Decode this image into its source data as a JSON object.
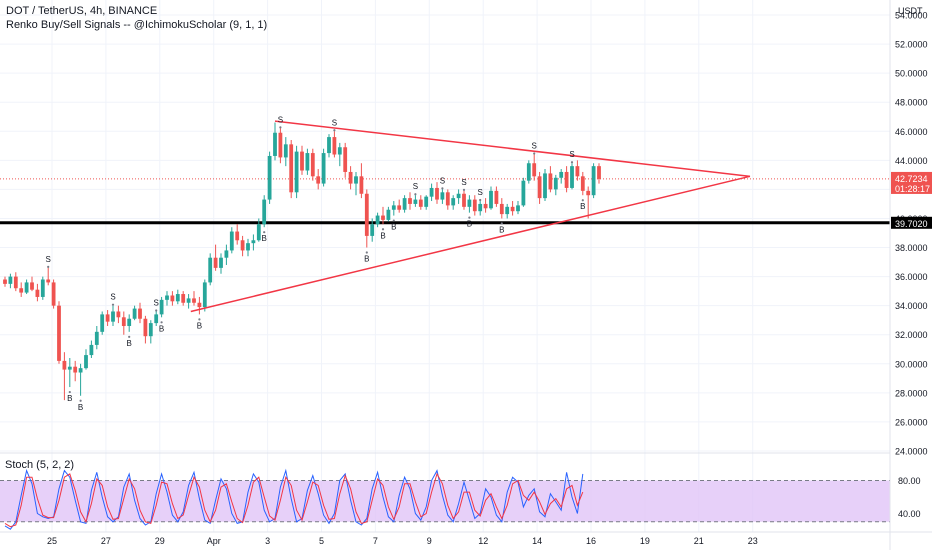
{
  "header": {
    "symbol_line": "DOT / TetherUS, 4h, BINANCE",
    "indicator_line": "Renko Buy/Sell Signals -- @IchimokuScholar (9, 1, 1)",
    "oscillator_line": "Stoch (5, 2, 2)"
  },
  "currency": "USDT",
  "chart_data": [
    {
      "type": "candlestick",
      "title": "DOT / TetherUS, 4h, BINANCE",
      "ylim": [
        24,
        54
      ],
      "y_ticks": [
        "54.0000",
        "52.0000",
        "50.0000",
        "48.0000",
        "46.0000",
        "44.0000",
        "42.0000",
        "40.0000",
        "38.0000",
        "36.0000",
        "34.0000",
        "32.0000",
        "30.0000",
        "28.0000",
        "26.0000",
        "24.0000"
      ],
      "x_ticks": [
        "25",
        "27",
        "29",
        "Apr",
        "3",
        "5",
        "7",
        "9",
        "12",
        "14",
        "16",
        "19",
        "21",
        "23"
      ],
      "last_price": "42.7234",
      "countdown": "01:28:17",
      "support_level": "39.7020",
      "support_value": 39.702,
      "up_color": "#26a69a",
      "down_color": "#ef5350",
      "trendline_color": "#f23645",
      "candles": [
        [
          35.8,
          36.0,
          35.3,
          35.5
        ],
        [
          35.5,
          36.2,
          35.2,
          36.0
        ],
        [
          36.0,
          36.3,
          35.0,
          35.2
        ],
        [
          35.2,
          35.6,
          34.6,
          34.9
        ],
        [
          34.9,
          35.8,
          34.8,
          35.6
        ],
        [
          35.6,
          36.0,
          35.0,
          35.1
        ],
        [
          35.1,
          35.5,
          34.3,
          34.6
        ],
        [
          34.6,
          36.0,
          34.4,
          35.8
        ],
        [
          35.8,
          36.6,
          35.4,
          35.6
        ],
        [
          35.6,
          35.8,
          33.8,
          34.0
        ],
        [
          34.0,
          34.3,
          30.0,
          30.2
        ],
        [
          30.2,
          30.8,
          27.5,
          29.6
        ],
        [
          29.6,
          30.4,
          28.4,
          29.8
        ],
        [
          29.8,
          30.2,
          28.8,
          29.4
        ],
        [
          29.4,
          30.0,
          27.8,
          29.7
        ],
        [
          29.7,
          31.0,
          29.6,
          30.6
        ],
        [
          30.6,
          31.6,
          30.4,
          31.3
        ],
        [
          31.3,
          32.6,
          31.0,
          32.2
        ],
        [
          32.2,
          33.6,
          32.0,
          33.4
        ],
        [
          33.4,
          33.7,
          32.6,
          32.9
        ],
        [
          32.9,
          34.0,
          32.6,
          33.6
        ],
        [
          33.6,
          34.0,
          32.8,
          33.2
        ],
        [
          33.2,
          33.6,
          32.0,
          32.6
        ],
        [
          32.6,
          33.4,
          32.2,
          33.1
        ],
        [
          33.1,
          34.0,
          33.0,
          33.8
        ],
        [
          33.8,
          34.2,
          32.8,
          33.1
        ],
        [
          33.1,
          33.3,
          31.4,
          31.9
        ],
        [
          31.9,
          33.0,
          31.4,
          32.8
        ],
        [
          32.8,
          33.6,
          32.6,
          33.4
        ],
        [
          33.4,
          34.6,
          33.2,
          34.4
        ],
        [
          34.4,
          35.0,
          34.0,
          34.7
        ],
        [
          34.7,
          35.0,
          34.0,
          34.3
        ],
        [
          34.3,
          35.1,
          34.1,
          34.8
        ],
        [
          34.8,
          35.0,
          34.0,
          34.2
        ],
        [
          34.2,
          34.8,
          33.8,
          34.5
        ],
        [
          34.5,
          35.0,
          34.0,
          34.2
        ],
        [
          34.2,
          34.6,
          33.4,
          33.9
        ],
        [
          33.9,
          35.8,
          33.6,
          35.6
        ],
        [
          35.6,
          37.6,
          35.4,
          37.3
        ],
        [
          37.3,
          38.2,
          36.4,
          36.6
        ],
        [
          36.6,
          37.6,
          36.2,
          37.3
        ],
        [
          37.3,
          38.2,
          36.8,
          37.8
        ],
        [
          37.8,
          39.4,
          37.6,
          39.1
        ],
        [
          39.1,
          39.6,
          38.2,
          38.5
        ],
        [
          38.5,
          38.8,
          37.4,
          37.8
        ],
        [
          37.8,
          38.6,
          37.4,
          38.3
        ],
        [
          38.3,
          38.9,
          37.8,
          38.5
        ],
        [
          38.5,
          40.0,
          38.4,
          39.6
        ],
        [
          39.6,
          41.6,
          39.4,
          41.3
        ],
        [
          41.3,
          44.6,
          41.0,
          44.3
        ],
        [
          44.3,
          46.6,
          44.0,
          45.9
        ],
        [
          45.9,
          46.2,
          43.8,
          44.2
        ],
        [
          44.2,
          45.6,
          43.6,
          45.1
        ],
        [
          45.1,
          45.4,
          41.4,
          41.8
        ],
        [
          41.8,
          45.0,
          41.4,
          44.6
        ],
        [
          44.6,
          45.0,
          43.0,
          43.3
        ],
        [
          43.3,
          44.8,
          43.0,
          44.5
        ],
        [
          44.5,
          44.8,
          42.6,
          42.9
        ],
        [
          42.9,
          43.4,
          42.0,
          42.4
        ],
        [
          42.4,
          44.8,
          42.2,
          44.5
        ],
        [
          44.5,
          45.8,
          44.2,
          45.6
        ],
        [
          45.6,
          46.0,
          44.2,
          44.4
        ],
        [
          44.4,
          45.2,
          43.6,
          44.9
        ],
        [
          44.9,
          45.2,
          42.8,
          43.2
        ],
        [
          43.2,
          43.6,
          42.0,
          42.4
        ],
        [
          42.4,
          43.2,
          41.6,
          42.9
        ],
        [
          42.9,
          43.8,
          41.4,
          41.7
        ],
        [
          41.7,
          42.0,
          38.0,
          38.8
        ],
        [
          38.8,
          40.0,
          38.4,
          39.6
        ],
        [
          39.6,
          40.4,
          39.4,
          40.2
        ],
        [
          40.2,
          40.8,
          39.6,
          39.9
        ],
        [
          39.9,
          40.8,
          39.8,
          40.6
        ],
        [
          40.6,
          41.2,
          40.2,
          40.9
        ],
        [
          40.9,
          41.3,
          40.4,
          40.6
        ],
        [
          40.6,
          41.6,
          40.4,
          41.4
        ],
        [
          41.4,
          41.8,
          40.6,
          41.0
        ],
        [
          41.0,
          41.6,
          40.8,
          41.3
        ],
        [
          41.3,
          41.6,
          40.6,
          40.8
        ],
        [
          40.8,
          41.6,
          40.6,
          41.5
        ],
        [
          41.5,
          42.4,
          41.2,
          42.1
        ],
        [
          42.1,
          42.5,
          41.0,
          41.3
        ],
        [
          41.3,
          42.0,
          41.0,
          41.8
        ],
        [
          41.8,
          42.0,
          40.6,
          40.9
        ],
        [
          40.9,
          41.6,
          40.6,
          41.4
        ],
        [
          41.4,
          42.0,
          41.0,
          41.7
        ],
        [
          41.7,
          41.9,
          40.6,
          40.8
        ],
        [
          40.8,
          41.6,
          40.4,
          41.3
        ],
        [
          41.3,
          41.6,
          40.2,
          40.5
        ],
        [
          40.5,
          41.2,
          40.2,
          41.0
        ],
        [
          41.0,
          41.4,
          40.4,
          40.7
        ],
        [
          40.7,
          42.2,
          40.6,
          41.9
        ],
        [
          41.9,
          42.2,
          40.8,
          41.0
        ],
        [
          41.0,
          41.4,
          40.0,
          40.3
        ],
        [
          40.3,
          41.0,
          40.0,
          40.8
        ],
        [
          40.8,
          41.2,
          40.2,
          40.5
        ],
        [
          40.5,
          41.2,
          40.3,
          40.9
        ],
        [
          40.9,
          42.8,
          40.8,
          42.6
        ],
        [
          42.6,
          44.0,
          42.4,
          43.8
        ],
        [
          43.8,
          44.4,
          42.6,
          42.9
        ],
        [
          42.9,
          43.2,
          41.0,
          41.4
        ],
        [
          41.4,
          43.4,
          41.2,
          43.1
        ],
        [
          43.1,
          43.6,
          41.8,
          42.0
        ],
        [
          42.0,
          43.0,
          41.6,
          42.8
        ],
        [
          42.8,
          43.4,
          42.4,
          43.2
        ],
        [
          43.2,
          43.6,
          41.8,
          42.1
        ],
        [
          42.1,
          43.8,
          42.0,
          43.6
        ],
        [
          43.6,
          44.0,
          42.6,
          42.9
        ],
        [
          42.9,
          43.2,
          41.6,
          41.9
        ],
        [
          41.9,
          42.2,
          40.0,
          41.6
        ],
        [
          41.6,
          43.8,
          41.4,
          43.6
        ],
        [
          43.6,
          43.8,
          42.4,
          42.72
        ]
      ],
      "signals": [
        {
          "i": 8,
          "side": "S"
        },
        {
          "i": 12,
          "side": "B"
        },
        {
          "i": 14,
          "side": "B"
        },
        {
          "i": 20,
          "side": "S"
        },
        {
          "i": 23,
          "side": "B"
        },
        {
          "i": 28,
          "side": "S"
        },
        {
          "i": 29,
          "side": "B"
        },
        {
          "i": 36,
          "side": "B"
        },
        {
          "i": 48,
          "side": "B"
        },
        {
          "i": 51,
          "side": "S"
        },
        {
          "i": 61,
          "side": "S"
        },
        {
          "i": 67,
          "side": "B"
        },
        {
          "i": 70,
          "side": "B"
        },
        {
          "i": 72,
          "side": "B"
        },
        {
          "i": 76,
          "side": "S"
        },
        {
          "i": 81,
          "side": "S"
        },
        {
          "i": 85,
          "side": "S"
        },
        {
          "i": 86,
          "side": "B"
        },
        {
          "i": 88,
          "side": "S"
        },
        {
          "i": 92,
          "side": "B"
        },
        {
          "i": 98,
          "side": "S"
        },
        {
          "i": 105,
          "side": "S"
        },
        {
          "i": 107,
          "side": "B"
        }
      ]
    },
    {
      "type": "line",
      "title": "Stoch (5, 2, 2)",
      "ylim": [
        20,
        100
      ],
      "y_ticks": [
        "80.00",
        "40.00"
      ],
      "band": [
        30,
        80
      ],
      "series": [
        {
          "color": "#2962ff",
          "values": [
            25,
            21,
            30,
            62,
            92,
            76,
            40,
            36,
            34,
            36,
            70,
            92,
            84,
            56,
            30,
            28,
            68,
            90,
            60,
            36,
            30,
            36,
            72,
            88,
            56,
            34,
            26,
            30,
            64,
            88,
            66,
            38,
            30,
            42,
            74,
            90,
            58,
            32,
            28,
            56,
            82,
            70,
            40,
            28,
            30,
            66,
            88,
            78,
            44,
            30,
            34,
            72,
            92,
            58,
            30,
            34,
            68,
            86,
            64,
            38,
            28,
            40,
            80,
            88,
            56,
            30,
            26,
            34,
            70,
            90,
            60,
            36,
            30,
            62,
            84,
            70,
            40,
            32,
            48,
            80,
            92,
            62,
            38,
            30,
            52,
            78,
            56,
            34,
            40,
            70,
            60,
            38,
            30,
            66,
            84,
            78,
            48,
            62,
            70,
            42,
            36,
            64,
            54,
            44,
            90,
            60,
            40,
            88
          ]
        },
        {
          "color": "#f23645",
          "values": [
            28,
            24,
            26,
            50,
            84,
            84,
            58,
            38,
            35,
            35,
            56,
            84,
            88,
            68,
            42,
            30,
            52,
            82,
            74,
            48,
            33,
            34,
            58,
            82,
            70,
            44,
            30,
            28,
            50,
            78,
            76,
            52,
            34,
            38,
            62,
            84,
            72,
            44,
            30,
            44,
            72,
            76,
            54,
            34,
            29,
            50,
            78,
            84,
            60,
            37,
            32,
            56,
            84,
            74,
            44,
            32,
            54,
            78,
            74,
            50,
            33,
            34,
            64,
            86,
            70,
            42,
            28,
            30,
            56,
            82,
            74,
            48,
            33,
            48,
            76,
            76,
            54,
            36,
            40,
            66,
            88,
            76,
            50,
            34,
            42,
            66,
            66,
            44,
            37,
            56,
            64,
            48,
            34,
            50,
            76,
            80,
            62,
            56,
            66,
            54,
            39,
            52,
            58,
            48,
            70,
            74,
            50,
            66
          ]
        }
      ]
    }
  ]
}
